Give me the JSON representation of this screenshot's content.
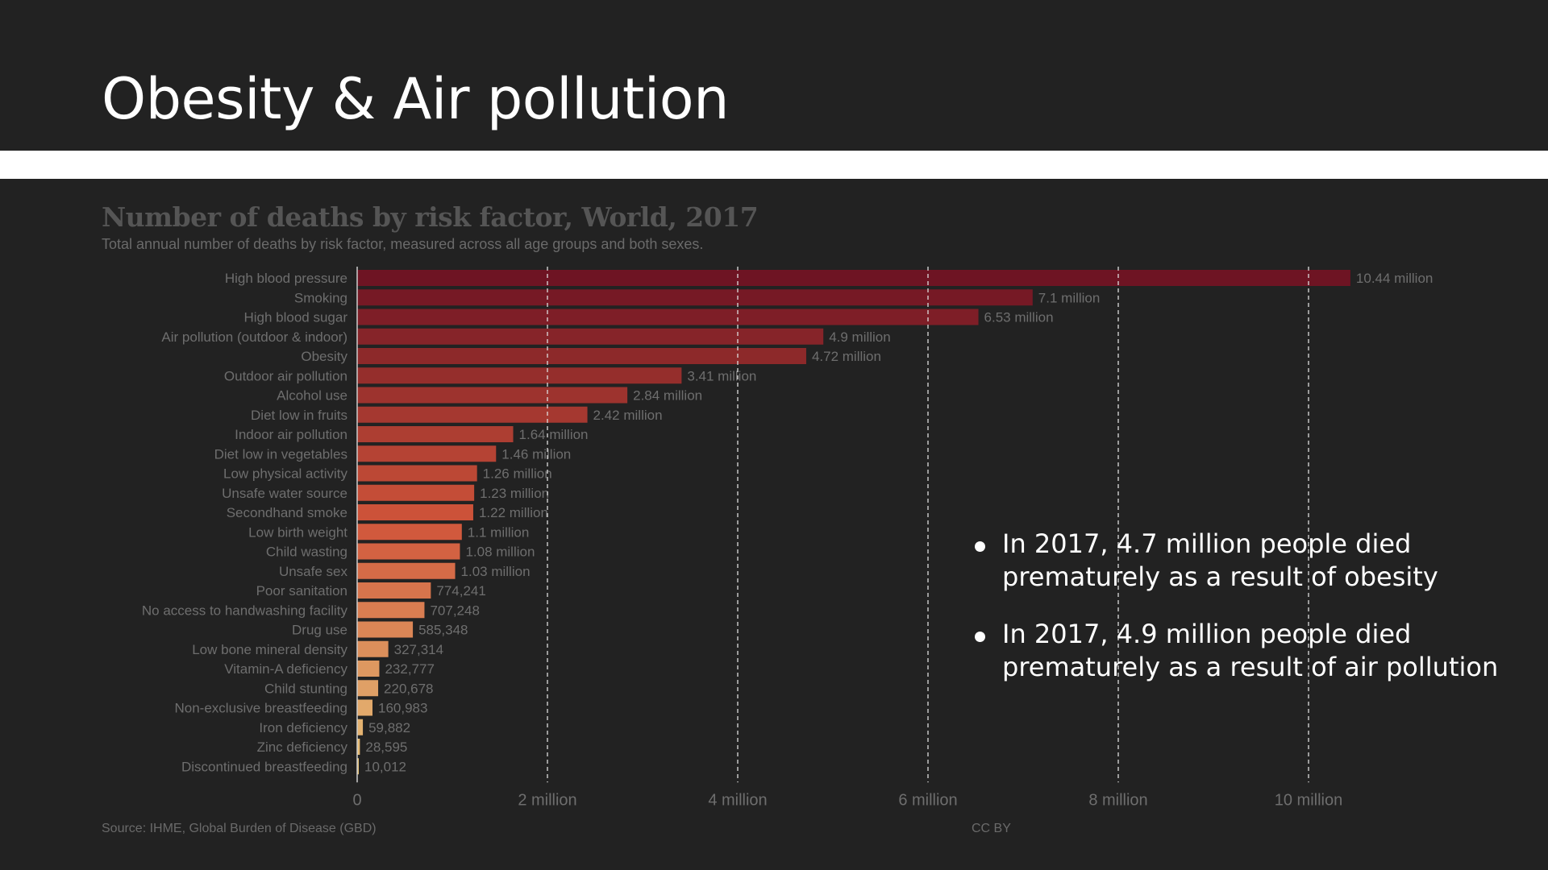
{
  "slide": {
    "title": "Obesity & Air pollution",
    "notes": [
      "In 2017, 4.7 million people died prematurely as a result of obesity",
      "In 2017, 4.9 million people died prematurely as a result of air pollution"
    ]
  },
  "chart_data": {
    "type": "bar",
    "orientation": "horizontal",
    "title": "Number of deaths by risk factor, World, 2017",
    "subtitle": "Total annual number of deaths by risk factor, measured across all age groups and both sexes.",
    "source": "Source: IHME, Global Burden of Disease (GBD)",
    "license": "CC BY",
    "xlim": [
      0,
      11000000
    ],
    "grid": "vertical dashed",
    "x_ticks": [
      {
        "value": 0,
        "label": "0"
      },
      {
        "value": 2000000,
        "label": "2 million"
      },
      {
        "value": 4000000,
        "label": "4 million"
      },
      {
        "value": 6000000,
        "label": "6 million"
      },
      {
        "value": 8000000,
        "label": "8 million"
      },
      {
        "value": 10000000,
        "label": "10 million"
      }
    ],
    "color_start": "#6e1423",
    "color_mid": "#d0553a",
    "color_end": "#e8c47a",
    "bars": [
      {
        "label": "High blood pressure",
        "value": 10440000,
        "value_label": "10.44 million"
      },
      {
        "label": "Smoking",
        "value": 7100000,
        "value_label": "7.1 million"
      },
      {
        "label": "High blood sugar",
        "value": 6530000,
        "value_label": "6.53 million"
      },
      {
        "label": "Air pollution (outdoor & indoor)",
        "value": 4900000,
        "value_label": "4.9 million"
      },
      {
        "label": "Obesity",
        "value": 4720000,
        "value_label": "4.72 million"
      },
      {
        "label": "Outdoor air pollution",
        "value": 3410000,
        "value_label": "3.41 million"
      },
      {
        "label": "Alcohol use",
        "value": 2840000,
        "value_label": "2.84 million"
      },
      {
        "label": "Diet low in fruits",
        "value": 2420000,
        "value_label": "2.42 million"
      },
      {
        "label": "Indoor air pollution",
        "value": 1640000,
        "value_label": "1.64 million"
      },
      {
        "label": "Diet low in vegetables",
        "value": 1460000,
        "value_label": "1.46 million"
      },
      {
        "label": "Low physical activity",
        "value": 1260000,
        "value_label": "1.26 million"
      },
      {
        "label": "Unsafe water source",
        "value": 1230000,
        "value_label": "1.23 million"
      },
      {
        "label": "Secondhand smoke",
        "value": 1220000,
        "value_label": "1.22 million"
      },
      {
        "label": "Low birth weight",
        "value": 1100000,
        "value_label": "1.1 million"
      },
      {
        "label": "Child wasting",
        "value": 1080000,
        "value_label": "1.08 million"
      },
      {
        "label": "Unsafe sex",
        "value": 1030000,
        "value_label": "1.03 million"
      },
      {
        "label": "Poor sanitation",
        "value": 774241,
        "value_label": "774,241"
      },
      {
        "label": "No access to handwashing facility",
        "value": 707248,
        "value_label": "707,248"
      },
      {
        "label": "Drug use",
        "value": 585348,
        "value_label": "585,348"
      },
      {
        "label": "Low bone mineral density",
        "value": 327314,
        "value_label": "327,314"
      },
      {
        "label": "Vitamin-A deficiency",
        "value": 232777,
        "value_label": "232,777"
      },
      {
        "label": "Child stunting",
        "value": 220678,
        "value_label": "220,678"
      },
      {
        "label": "Non-exclusive breastfeeding",
        "value": 160983,
        "value_label": "160,983"
      },
      {
        "label": "Iron deficiency",
        "value": 59882,
        "value_label": "59,882"
      },
      {
        "label": "Zinc deficiency",
        "value": 28595,
        "value_label": "28,595"
      },
      {
        "label": "Discontinued breastfeeding",
        "value": 10012,
        "value_label": "10,012"
      }
    ]
  }
}
